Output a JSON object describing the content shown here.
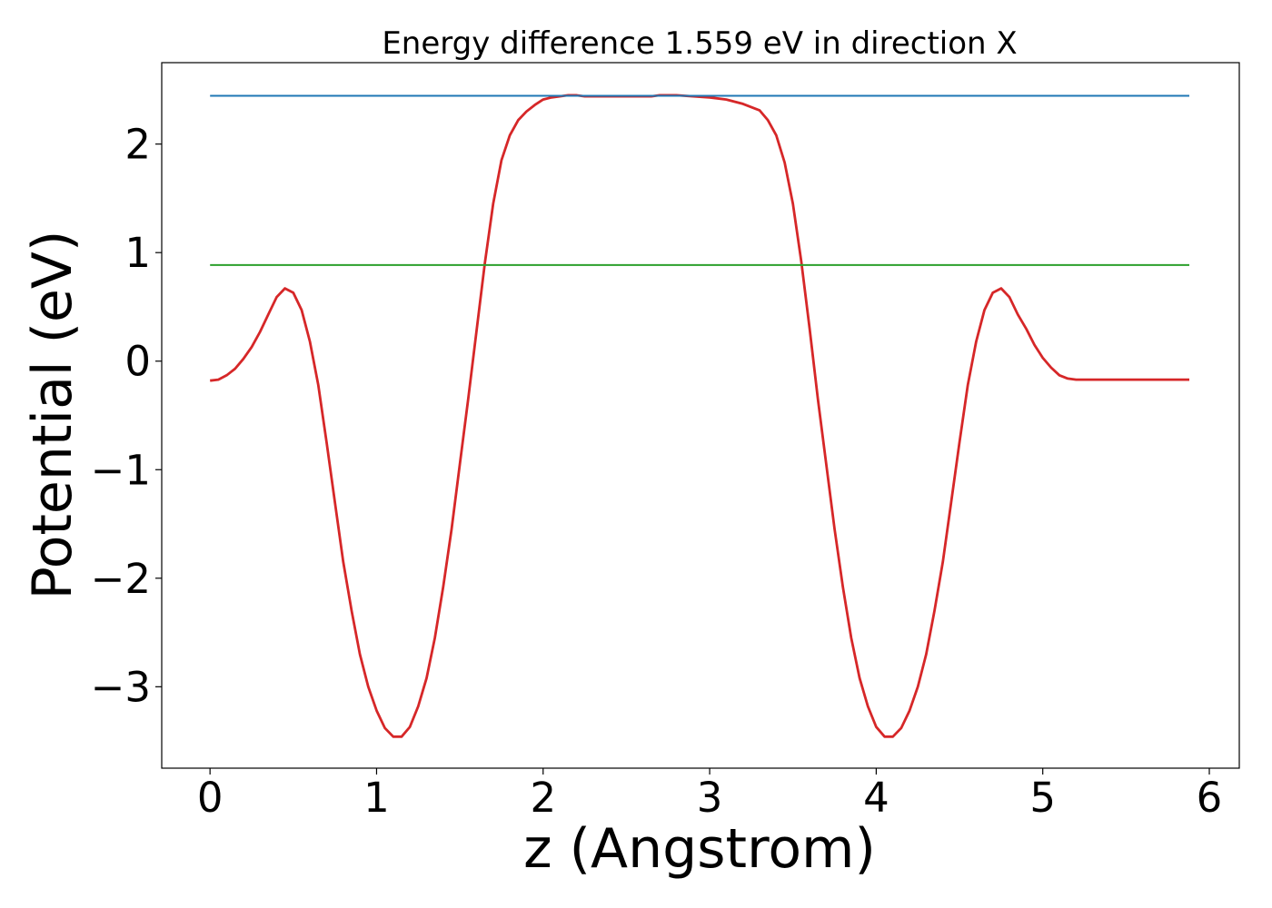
{
  "chart_data": {
    "type": "line",
    "title": "Energy difference 1.559 eV in direction X",
    "xlabel": "z (Angstrom)",
    "ylabel": "Potential (eV)",
    "xlim": [
      -0.29,
      6.18
    ],
    "ylim": [
      -3.75,
      2.75
    ],
    "grid": false,
    "xticks": [
      0,
      1,
      2,
      3,
      4,
      5,
      6
    ],
    "xtick_labels": [
      "0",
      "1",
      "2",
      "3",
      "4",
      "5",
      "6"
    ],
    "yticks": [
      -3,
      -2,
      -1,
      0,
      1,
      2
    ],
    "ytick_labels": [
      "−3",
      "−2",
      "−1",
      "0",
      "1",
      "2"
    ],
    "series": [
      {
        "color": "#d62728",
        "x": [
          0,
          0.05,
          0.1,
          0.15,
          0.2,
          0.25,
          0.3,
          0.35,
          0.4,
          0.45,
          0.5,
          0.55,
          0.6,
          0.65,
          0.7,
          0.75,
          0.8,
          0.85,
          0.9,
          0.95,
          1.0,
          1.05,
          1.1,
          1.15,
          1.2,
          1.25,
          1.3,
          1.35,
          1.4,
          1.45,
          1.5,
          1.55,
          1.6,
          1.65,
          1.7,
          1.75,
          1.8,
          1.85,
          1.9,
          1.95,
          2.0,
          2.05,
          2.1,
          2.15,
          2.2,
          2.25,
          2.3,
          2.35,
          2.4,
          2.45,
          2.5,
          2.55,
          2.6,
          2.65,
          2.7,
          2.8,
          2.9,
          3.0,
          3.1,
          3.2,
          3.3,
          3.35,
          3.4,
          3.45,
          3.5,
          3.55,
          3.6,
          3.65,
          3.7,
          3.75,
          3.8,
          3.85,
          3.9,
          3.95,
          4.0,
          4.05,
          4.1,
          4.15,
          4.2,
          4.25,
          4.3,
          4.35,
          4.4,
          4.45,
          4.5,
          4.55,
          4.6,
          4.65,
          4.7,
          4.75,
          4.8,
          4.85,
          4.9,
          4.95,
          5.0,
          5.05,
          5.1,
          5.15,
          5.2,
          5.25,
          5.3,
          5.35,
          5.4,
          5.45,
          5.5,
          5.55,
          5.6,
          5.65,
          5.7,
          5.75,
          5.8,
          5.85,
          5.88
        ],
        "y": [
          -0.18,
          -0.17,
          -0.13,
          -0.07,
          0.02,
          0.13,
          0.27,
          0.43,
          0.59,
          0.67,
          0.63,
          0.47,
          0.18,
          -0.22,
          -0.75,
          -1.3,
          -1.85,
          -2.3,
          -2.7,
          -3.0,
          -3.22,
          -3.38,
          -3.46,
          -3.46,
          -3.37,
          -3.18,
          -2.92,
          -2.55,
          -2.08,
          -1.55,
          -0.95,
          -0.35,
          0.28,
          0.9,
          1.45,
          1.85,
          2.08,
          2.22,
          2.3,
          2.36,
          2.41,
          2.43,
          2.44,
          2.45,
          2.45,
          2.44,
          2.44,
          2.44,
          2.44,
          2.44,
          2.44,
          2.44,
          2.44,
          2.44,
          2.45,
          2.45,
          2.44,
          2.43,
          2.41,
          2.37,
          2.31,
          2.22,
          2.08,
          1.83,
          1.45,
          0.92,
          0.3,
          -0.35,
          -0.95,
          -1.55,
          -2.08,
          -2.55,
          -2.92,
          -3.18,
          -3.37,
          -3.46,
          -3.46,
          -3.38,
          -3.22,
          -3.0,
          -2.7,
          -2.3,
          -1.85,
          -1.3,
          -0.75,
          -0.22,
          0.18,
          0.47,
          0.63,
          0.67,
          0.59,
          0.43,
          0.3,
          0.15,
          0.03,
          -0.06,
          -0.13,
          -0.16,
          -0.17,
          -0.17,
          -0.17,
          -0.17,
          -0.17,
          -0.17,
          -0.17,
          -0.17,
          -0.17,
          -0.17,
          -0.17,
          -0.17,
          -0.17,
          -0.17,
          -0.17
        ]
      },
      {
        "color": "#1f77b4",
        "x": [
          0,
          5.88
        ],
        "y": [
          2.445,
          2.445
        ]
      },
      {
        "color": "#2ca02c",
        "x": [
          0,
          5.88
        ],
        "y": [
          0.885,
          0.885
        ]
      }
    ]
  }
}
